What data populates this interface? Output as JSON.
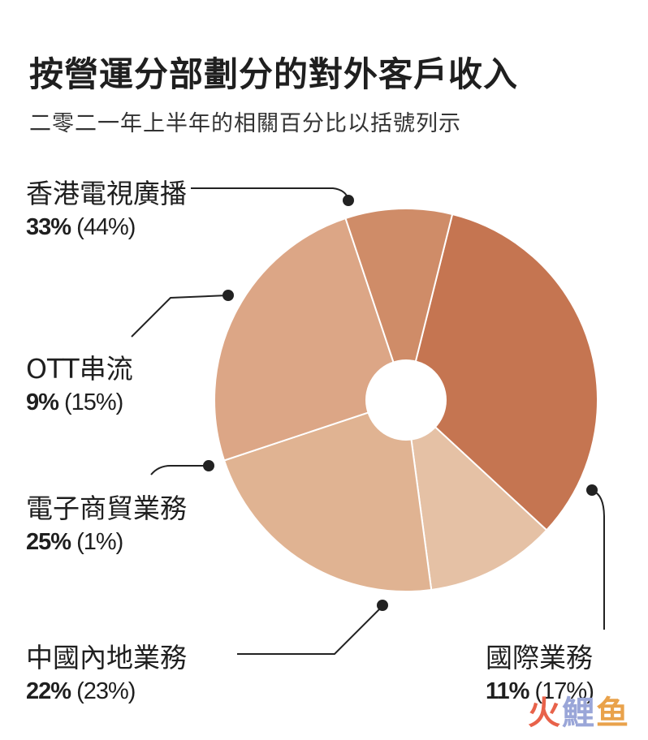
{
  "title": "按營運分部劃分的對外客戶收入",
  "subtitle": "二零二一年上半年的相關百分比以括號列示",
  "watermark": {
    "part1": "火",
    "part2": "鯉",
    "part3": "鱼"
  },
  "chart_data": {
    "type": "pie",
    "title": "按營運分部劃分的對外客戶收入",
    "subtitle": "二零二一年上半年的相關百分比以括號列示",
    "slices": [
      {
        "label": "香港電視廣播",
        "value": 33,
        "prev": 44,
        "value_text": "33%",
        "prev_text": "(44%)",
        "color": "#c57551"
      },
      {
        "label": "國際業務",
        "value": 11,
        "prev": 17,
        "value_text": "11%",
        "prev_text": "(17%)",
        "color": "#e5c1a5"
      },
      {
        "label": "中國內地業務",
        "value": 22,
        "prev": 23,
        "value_text": "22%",
        "prev_text": "(23%)",
        "color": "#e0b392"
      },
      {
        "label": "電子商貿業務",
        "value": 25,
        "prev": 1,
        "value_text": "25%",
        "prev_text": "(1%)",
        "color": "#dca686"
      },
      {
        "label": "OTT串流",
        "value": 9,
        "prev": 15,
        "value_text": "9%",
        "prev_text": "(15%)",
        "color": "#cf8c68"
      }
    ]
  }
}
